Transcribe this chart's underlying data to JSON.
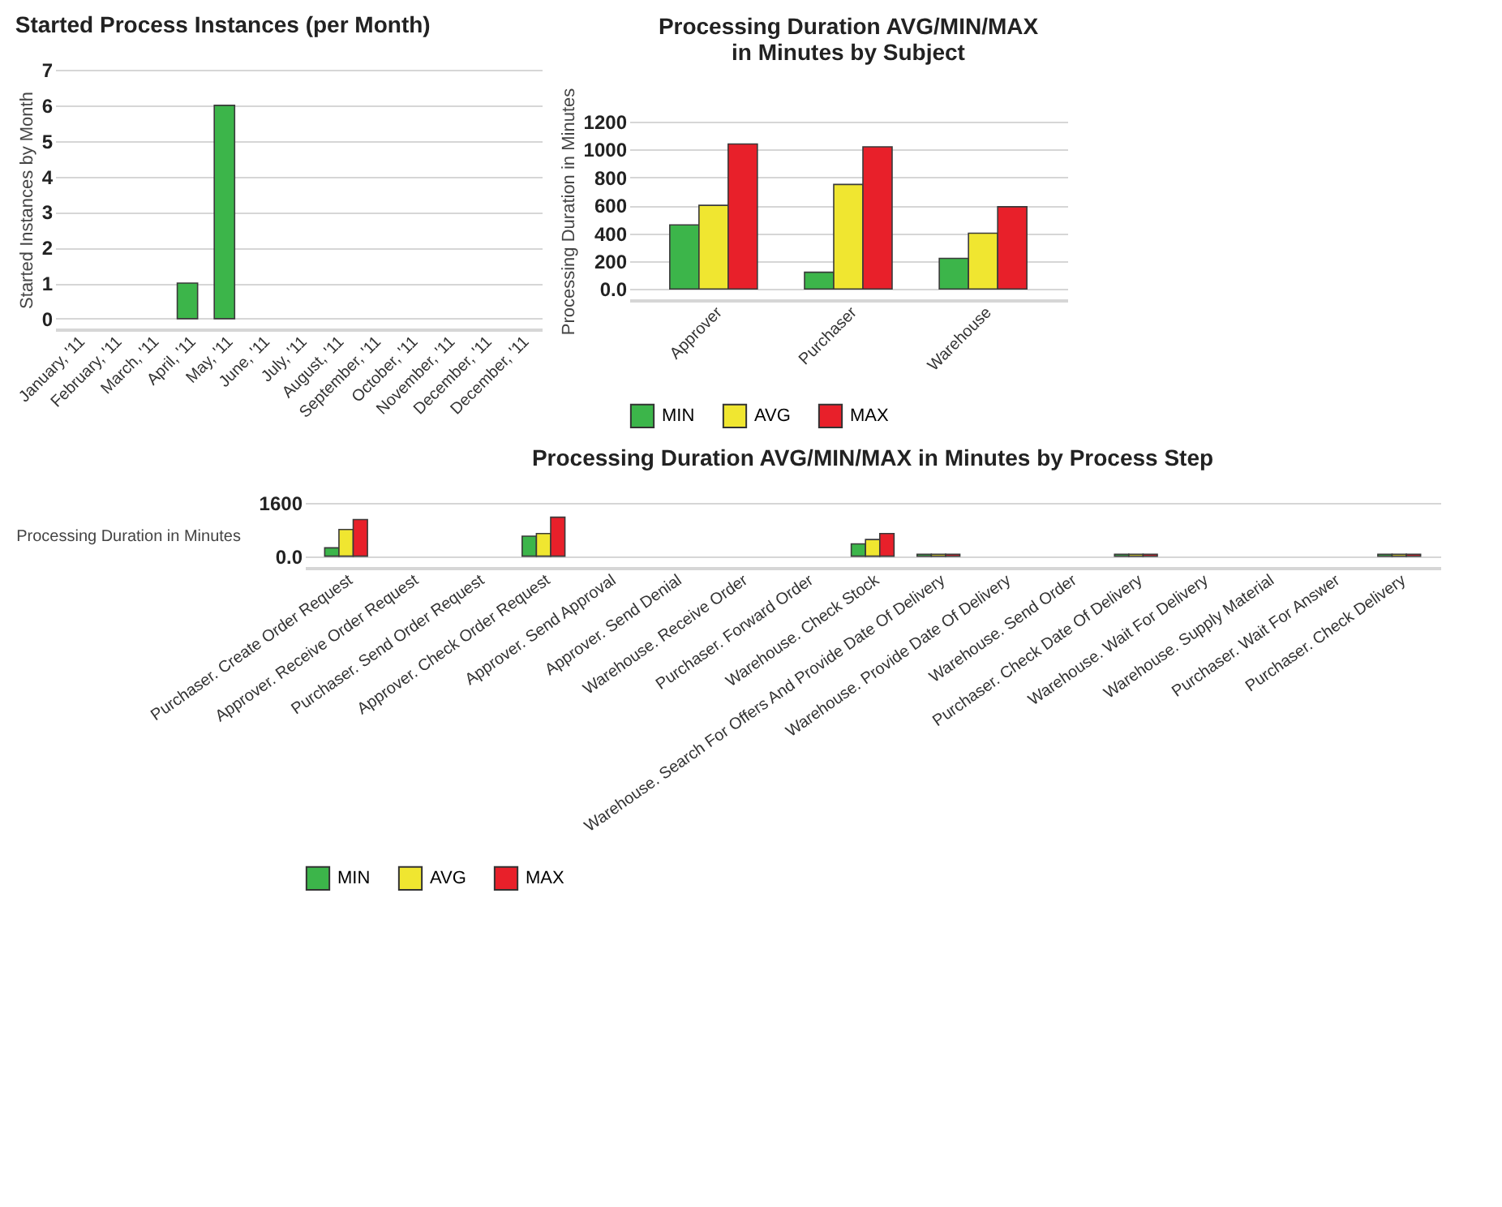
{
  "chart_data": [
    {
      "type": "bar",
      "title": "Started Process Instances (per Month)",
      "ylabel": "Started Instances by Month",
      "categories": [
        "January, '11",
        "February, '11",
        "March, '11",
        "April, '11",
        "May, '11",
        "June, '11",
        "July, '11",
        "August, '11",
        "September, '11",
        "October, '11",
        "November, '11",
        "December, '11",
        "December, '11"
      ],
      "values": [
        null,
        null,
        null,
        1,
        6,
        null,
        null,
        null,
        null,
        null,
        null,
        null,
        null
      ],
      "color": "#3cb54a",
      "ylim": [
        -0.3,
        7
      ],
      "yticks": [
        0,
        1,
        2,
        3,
        4,
        5,
        6,
        7
      ],
      "grid": "y"
    },
    {
      "type": "bar",
      "title": "Processing Duration AVG/MIN/MAX\nin Minutes by Subject",
      "ylabel": "Processing Duration in Minutes",
      "categories": [
        "Approver",
        "Purchaser",
        "Warehouse"
      ],
      "series": [
        {
          "name": "MIN",
          "color": "#3cb54a",
          "values": [
            460,
            120,
            220
          ]
        },
        {
          "name": "AVG",
          "color": "#f0e630",
          "values": [
            600,
            750,
            400
          ]
        },
        {
          "name": "MAX",
          "color": "#e8202a",
          "values": [
            1040,
            1020,
            590
          ]
        }
      ],
      "ylim": [
        -80,
        1200
      ],
      "yticks": [
        {
          "value": 0,
          "label": "0.0"
        },
        200,
        400,
        600,
        800,
        1000,
        1200
      ],
      "grid": "y",
      "legend": "bottom"
    },
    {
      "type": "bar",
      "title": "Processing Duration AVG/MIN/MAX in Minutes by Process Step",
      "ylabel": "Processing Duration in Minutes",
      "categories": [
        "Purchaser. Create Order Request",
        "Approver. Receive Order Request",
        "Purchaser. Send Order Request",
        "Approver. Check Order Request",
        "Approver. Send Approval",
        "Approver. Send Denial",
        "Warehouse. Receive Order",
        "Purchaser. Forward Order",
        "Warehouse. Check Stock",
        "Warehouse. Search For Offers And Provide Date Of Delivery",
        "Warehouse. Provide Date Of Delivery",
        "Warehouse. Send Order",
        "Purchaser. Check Date Of Delivery",
        "Warehouse. Wait For Delivery",
        "Warehouse. Supply Material",
        "Purchaser. Wait For Answer",
        "Purchaser. Check Delivery"
      ],
      "series": [
        {
          "name": "MIN",
          "color": "#3cb54a",
          "values": [
            250,
            null,
            null,
            600,
            null,
            null,
            null,
            null,
            370,
            60,
            null,
            null,
            60,
            null,
            null,
            null,
            60
          ]
        },
        {
          "name": "AVG",
          "color": "#f0e630",
          "values": [
            800,
            null,
            null,
            680,
            null,
            null,
            null,
            null,
            500,
            60,
            null,
            null,
            60,
            null,
            null,
            null,
            60
          ]
        },
        {
          "name": "MAX",
          "color": "#e8202a",
          "values": [
            1100,
            null,
            null,
            1170,
            null,
            null,
            null,
            null,
            680,
            60,
            null,
            null,
            60,
            null,
            null,
            null,
            60
          ]
        }
      ],
      "ylim": [
        -350,
        1600
      ],
      "yticks": [
        {
          "value": 0,
          "label": "0.0"
        },
        1600
      ],
      "grid": "y",
      "legend": "bottom"
    }
  ]
}
